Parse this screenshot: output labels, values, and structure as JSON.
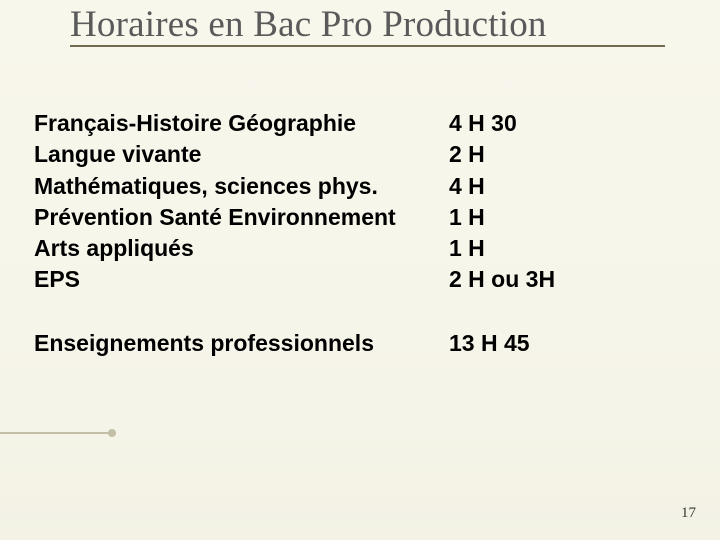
{
  "title": "Horaires en Bac Pro Production",
  "label_fontsize": 23,
  "label_fontweight": 700,
  "title_fontsize": 37,
  "title_color": "#5a5a5a",
  "text_color": "#000000",
  "background_color": "#f6f5ea",
  "rows": [
    {
      "subject": "Français-Histoire Géographie",
      "hours": "4 H 30"
    },
    {
      "subject": "Langue vivante",
      "hours": "2 H"
    },
    {
      "subject": "Mathématiques, sciences phys.",
      "hours": "4 H"
    },
    {
      "subject": "Prévention Santé Environnement",
      "hours": "1 H"
    },
    {
      "subject": "Arts appliqués",
      "hours": "1 H"
    },
    {
      "subject": "EPS",
      "hours": "2 H ou  3H"
    }
  ],
  "extra": [
    {
      "subject": "Enseignements professionnels",
      "hours": "13 H 45"
    }
  ],
  "page_number": "17"
}
